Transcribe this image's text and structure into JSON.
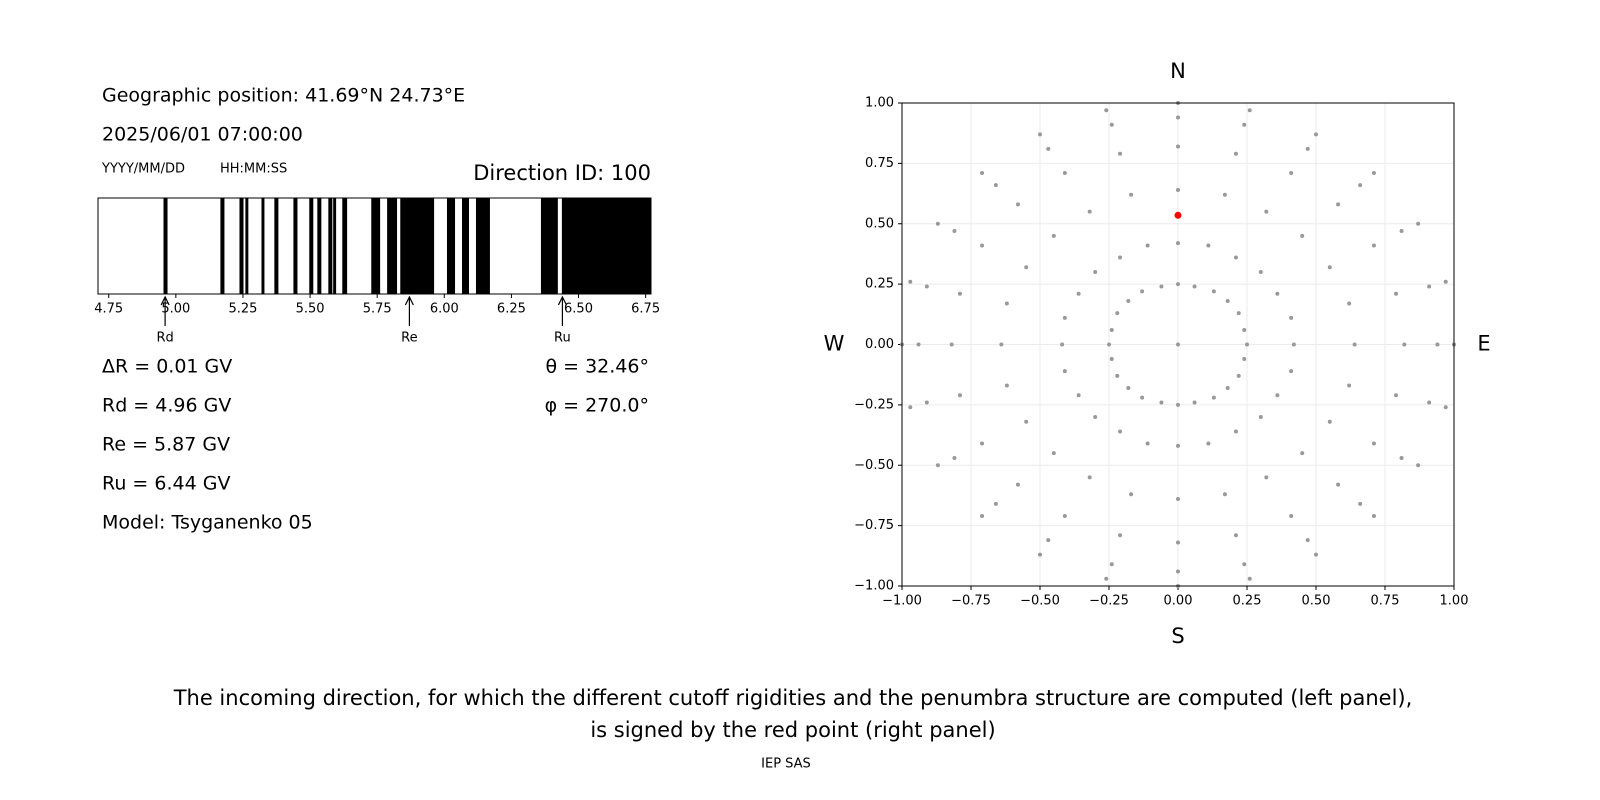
{
  "texts": {
    "position": "Geographic position: 41.69°N 24.73°E",
    "datetime": "2025/06/01 07:00:00",
    "date_format": "YYYY/MM/DD",
    "time_format": "HH:MM:SS",
    "direction": "Direction ID: 100",
    "stats_left": [
      "ΔR = 0.01 GV",
      "Rd = 4.96 GV",
      "Re = 5.87 GV",
      "Ru = 6.44 GV",
      "Model: Tsyganenko 05"
    ],
    "stats_right": [
      "θ = 32.46°",
      "φ = 270.0°"
    ],
    "caption": [
      "The incoming direction, for which the different cutoff rigidities and the penumbra structure are computed (left panel),",
      "is signed by the red point (right panel)"
    ],
    "footer": "IEP SAS"
  },
  "chart_data": [
    {
      "type": "penumbra",
      "color": "#000000",
      "xlim": [
        4.71,
        6.77
      ],
      "xticks": [
        4.75,
        {
          "value": 5,
          "label": "5.00"
        },
        5.25,
        {
          "value": 5.5,
          "label": "5.50"
        },
        5.75,
        {
          "value": 6,
          "label": "6.00"
        },
        6.25,
        {
          "value": 6.5,
          "label": "6.50"
        },
        6.75
      ],
      "bands": [
        [
          4.954,
          4.969
        ],
        [
          5.166,
          5.181
        ],
        [
          5.237,
          5.252
        ],
        [
          5.259,
          5.27
        ],
        [
          5.319,
          5.33
        ],
        [
          5.367,
          5.382
        ],
        [
          5.438,
          5.453
        ],
        [
          5.497,
          5.512
        ],
        [
          5.527,
          5.542
        ],
        [
          5.568,
          5.583
        ],
        [
          5.586,
          5.597
        ],
        [
          5.62,
          5.638
        ],
        [
          5.728,
          5.761
        ],
        [
          5.787,
          5.824
        ],
        [
          5.836,
          5.962
        ],
        [
          6.01,
          6.04
        ],
        [
          6.066,
          6.092
        ],
        [
          6.118,
          6.17
        ],
        [
          6.36,
          6.423
        ],
        [
          6.438,
          6.77
        ]
      ],
      "markers": [
        {
          "label": "Rd",
          "value": 4.96
        },
        {
          "label": "Re",
          "value": 5.87
        },
        {
          "label": "Ru",
          "value": 6.44
        }
      ]
    },
    {
      "type": "scatter",
      "grid": true,
      "xlim": [
        -1,
        1
      ],
      "ylim": [
        -1,
        1
      ],
      "xticks": [
        {
          "value": -1,
          "label": "−1.00"
        },
        {
          "value": -0.75,
          "label": "−0.75"
        },
        {
          "value": -0.5,
          "label": "−0.50"
        },
        {
          "value": -0.25,
          "label": "−0.25"
        },
        {
          "value": 0,
          "label": "0.00"
        },
        {
          "value": 0.25,
          "label": "0.25"
        },
        {
          "value": 0.5,
          "label": "0.50"
        },
        {
          "value": 0.75,
          "label": "0.75"
        },
        {
          "value": 1,
          "label": "1.00"
        }
      ],
      "yticks": [
        {
          "value": -1,
          "label": "−1.00"
        },
        {
          "value": -0.75,
          "label": "−0.75"
        },
        {
          "value": -0.5,
          "label": "−0.50"
        },
        {
          "value": -0.25,
          "label": "−0.25"
        },
        {
          "value": 0,
          "label": "0.00"
        },
        {
          "value": 0.25,
          "label": "0.25"
        },
        {
          "value": 0.5,
          "label": "0.50"
        },
        {
          "value": 0.75,
          "label": "0.75"
        },
        {
          "value": 1,
          "label": "1.00"
        }
      ],
      "compass": {
        "top": "N",
        "bottom": "S",
        "left": "W",
        "right": "E"
      },
      "series": [
        {
          "color": "#999999",
          "x": [
            0,
            0.25,
            0.24,
            0.22,
            0.18,
            0.13,
            0.06,
            0.42,
            0.41,
            0.36,
            0.3,
            0.21,
            0.11,
            0.64,
            0.62,
            0.55,
            0.45,
            0.32,
            0.17,
            0.82,
            0.79,
            0.71,
            0.58,
            0.41,
            0.21,
            0.94,
            0.91,
            0.81,
            0.66,
            0.47,
            0.24,
            1,
            0.97,
            0.87,
            0.71,
            0.5,
            0.26,
            0,
            -0.06,
            -0.13,
            -0.18,
            -0.22,
            -0.24,
            0,
            -0.11,
            -0.21,
            -0.3,
            -0.36,
            -0.41,
            0,
            -0.17,
            -0.32,
            -0.45,
            -0.55,
            -0.62,
            0,
            -0.21,
            -0.41,
            -0.58,
            -0.71,
            -0.79,
            0,
            -0.24,
            -0.47,
            -0.66,
            -0.81,
            -0.91,
            0,
            -0.26,
            -0.5,
            -0.71,
            -0.87,
            -0.97,
            -0.25,
            -0.24,
            -0.22,
            -0.18,
            -0.13,
            -0.06,
            -0.42,
            -0.41,
            -0.36,
            -0.3,
            -0.21,
            -0.11,
            -0.64,
            -0.62,
            -0.55,
            -0.45,
            -0.32,
            -0.17,
            -0.82,
            -0.79,
            -0.71,
            -0.58,
            -0.41,
            -0.21,
            -0.94,
            -0.91,
            -0.81,
            -0.66,
            -0.47,
            -0.24,
            -1,
            -0.97,
            -0.87,
            -0.71,
            -0.5,
            -0.26,
            0,
            0.06,
            0.13,
            0.18,
            0.22,
            0.24,
            0,
            0.11,
            0.21,
            0.3,
            0.36,
            0.41,
            0,
            0.17,
            0.32,
            0.45,
            0.55,
            0.62,
            0,
            0.21,
            0.41,
            0.58,
            0.71,
            0.79,
            0,
            0.24,
            0.47,
            0.66,
            0.81,
            0.91,
            0,
            0.26,
            0.5,
            0.71,
            0.87,
            0.97
          ],
          "y": [
            0,
            0,
            0.06,
            0.13,
            0.18,
            0.22,
            0.24,
            0,
            0.11,
            0.21,
            0.3,
            0.36,
            0.41,
            0,
            0.17,
            0.32,
            0.45,
            0.55,
            0.62,
            0,
            0.21,
            0.41,
            0.58,
            0.71,
            0.79,
            0,
            0.24,
            0.47,
            0.66,
            0.81,
            0.91,
            0,
            0.26,
            0.5,
            0.71,
            0.87,
            0.97,
            0.25,
            0.24,
            0.22,
            0.18,
            0.13,
            0.06,
            0.42,
            0.41,
            0.36,
            0.3,
            0.21,
            0.11,
            0.64,
            0.62,
            0.55,
            0.45,
            0.32,
            0.17,
            0.82,
            0.79,
            0.71,
            0.58,
            0.41,
            0.21,
            0.94,
            0.91,
            0.81,
            0.66,
            0.47,
            0.24,
            1,
            0.97,
            0.87,
            0.71,
            0.5,
            0.26,
            0,
            -0.06,
            -0.13,
            -0.18,
            -0.22,
            -0.24,
            0,
            -0.11,
            -0.21,
            -0.3,
            -0.36,
            -0.41,
            0,
            -0.17,
            -0.32,
            -0.45,
            -0.55,
            -0.62,
            0,
            -0.21,
            -0.41,
            -0.58,
            -0.71,
            -0.79,
            0,
            -0.24,
            -0.47,
            -0.66,
            -0.81,
            -0.91,
            0,
            -0.26,
            -0.5,
            -0.71,
            -0.87,
            -0.97,
            -0.25,
            -0.24,
            -0.22,
            -0.18,
            -0.13,
            -0.06,
            -0.42,
            -0.41,
            -0.36,
            -0.3,
            -0.21,
            -0.11,
            -0.64,
            -0.62,
            -0.55,
            -0.45,
            -0.32,
            -0.17,
            -0.82,
            -0.79,
            -0.71,
            -0.58,
            -0.41,
            -0.21,
            -0.94,
            -0.91,
            -0.81,
            -0.66,
            -0.47,
            -0.24,
            -1,
            -0.97,
            -0.87,
            -0.71,
            -0.5,
            -0.26
          ]
        },
        {
          "color": "#ff0000",
          "x": [
            0
          ],
          "y": [
            0.535
          ]
        }
      ]
    }
  ]
}
